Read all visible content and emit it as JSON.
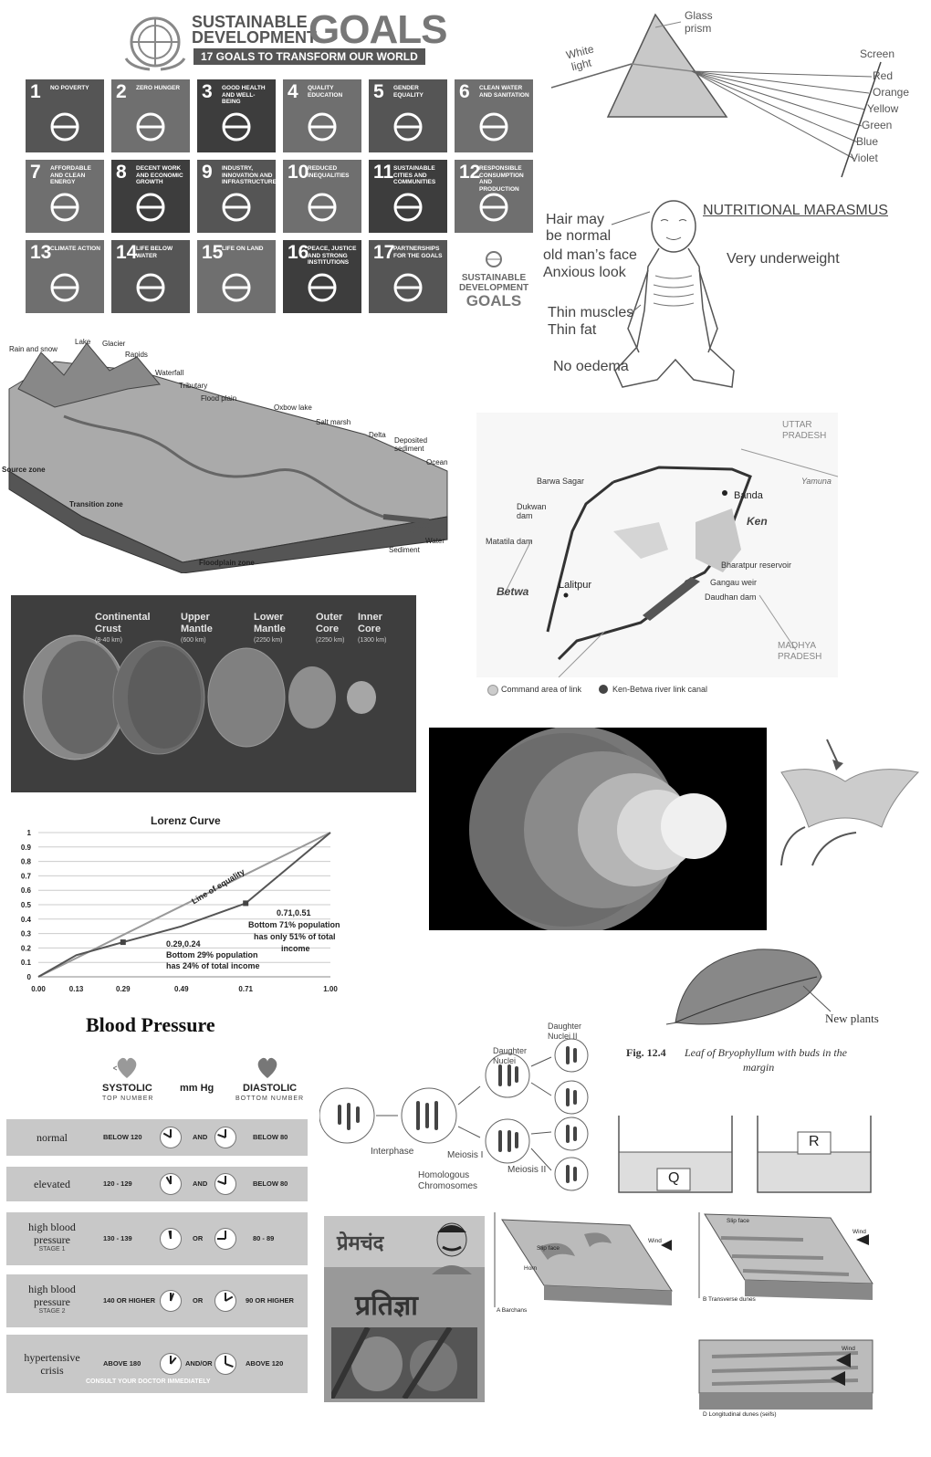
{
  "sdg": {
    "title_line1": "SUSTAINABLE",
    "title_line2": "DEVELOPMENT",
    "title_goals": "GOALS",
    "banner": "17 GOALS TO TRANSFORM OUR WORLD",
    "goals": [
      {
        "num": "1",
        "label": "NO POVERTY"
      },
      {
        "num": "2",
        "label": "ZERO HUNGER"
      },
      {
        "num": "3",
        "label": "GOOD HEALTH AND WELL-BEING"
      },
      {
        "num": "4",
        "label": "QUALITY EDUCATION"
      },
      {
        "num": "5",
        "label": "GENDER EQUALITY"
      },
      {
        "num": "6",
        "label": "CLEAN WATER AND SANITATION"
      },
      {
        "num": "7",
        "label": "AFFORDABLE AND CLEAN ENERGY"
      },
      {
        "num": "8",
        "label": "DECENT WORK AND ECONOMIC GROWTH"
      },
      {
        "num": "9",
        "label": "INDUSTRY, INNOVATION AND INFRASTRUCTURE"
      },
      {
        "num": "10",
        "label": "REDUCED INEQUALITIES"
      },
      {
        "num": "11",
        "label": "SUSTAINABLE CITIES AND COMMUNITIES"
      },
      {
        "num": "12",
        "label": "RESPONSIBLE CONSUMPTION AND PRODUCTION"
      },
      {
        "num": "13",
        "label": "CLIMATE ACTION"
      },
      {
        "num": "14",
        "label": "LIFE BELOW WATER"
      },
      {
        "num": "15",
        "label": "LIFE ON LAND"
      },
      {
        "num": "16",
        "label": "PEACE, JUSTICE AND STRONG INSTITUTIONS"
      },
      {
        "num": "17",
        "label": "PARTNERSHIPS FOR THE GOALS"
      }
    ],
    "logo_line1": "SUSTAINABLE",
    "logo_line2": "DEVELOPMENT",
    "logo_line3": "GOALS"
  },
  "prism": {
    "glass": "Glass",
    "prism": "prism",
    "white": "White",
    "light": "light",
    "screen": "Screen",
    "colors": [
      "Red",
      "Orange",
      "Yellow",
      "Green",
      "Blue",
      "Violet"
    ]
  },
  "marasmus": {
    "title": "NUTRITIONAL MARASMUS",
    "hair1": "Hair may",
    "hair2": "be normal",
    "face": "old man’s face",
    "anxious": "Anxious look",
    "underweight": "Very underweight",
    "muscles": "Thin muscles",
    "fat": "Thin fat",
    "oedema": "No oedema"
  },
  "river": {
    "labels": [
      "Rain and snow",
      "Lake",
      "Glacier",
      "Rapids",
      "Waterfall",
      "Tributary",
      "Flood plain",
      "Oxbow lake",
      "Salt marsh",
      "Delta",
      "Deposited sediment",
      "Ocean",
      "Source zone",
      "Transition zone",
      "Floodplain zone",
      "Sediment",
      "Water"
    ]
  },
  "kenbetwa": {
    "uttar": "UTTAR",
    "pradesh": "PRADESH",
    "madhya": "MADHYA",
    "pradesh2": "PRADESH",
    "yamuna": "Yamuna",
    "banda": "Banda",
    "ken": "Ken",
    "barwa": "Barwa Sagar",
    "dukwan1": "Dukwan",
    "dukwan2": "dam",
    "matatila": "Matatila dam",
    "betwa": "Betwa",
    "lalitpur": "Lalitpur",
    "bharatpur": "Bharatpur reservoir",
    "gangau": "Gangau weir",
    "daudhan": "Daudhan dam",
    "legend1": "Command area of link",
    "legend2": "Ken-Betwa river link canal"
  },
  "earth_layers": {
    "layers": [
      {
        "name1": "Continental",
        "name2": "Crust",
        "depth": "(8-40 km)"
      },
      {
        "name1": "Upper",
        "name2": "Mantle",
        "depth": "(600 km)"
      },
      {
        "name1": "Lower",
        "name2": "Mantle",
        "depth": "(2250 km)"
      },
      {
        "name1": "Outer",
        "name2": "Core",
        "depth": "(2250 km)"
      },
      {
        "name1": "Inner",
        "name2": "Core",
        "depth": "(1300 km)"
      }
    ]
  },
  "chart_data": {
    "type": "line",
    "title": "Lorenz Curve",
    "x_ticks": [
      "0.00",
      "0.13",
      "0.29",
      "0.49",
      "0.71",
      "1.00"
    ],
    "y_ticks": [
      "0",
      "0.1",
      "0.2",
      "0.3",
      "0.4",
      "0.5",
      "0.6",
      "0.7",
      "0.8",
      "0.9",
      "1"
    ],
    "ylim": [
      0,
      1
    ],
    "series": [
      {
        "name": "Line of equality",
        "points": [
          [
            0,
            0
          ],
          [
            0.13,
            0.13
          ],
          [
            0.29,
            0.29
          ],
          [
            0.49,
            0.49
          ],
          [
            0.71,
            0.71
          ],
          [
            1.0,
            1.0
          ]
        ]
      },
      {
        "points": [
          [
            0,
            0
          ],
          [
            0.13,
            0.15
          ],
          [
            0.29,
            0.24
          ],
          [
            0.49,
            0.35
          ],
          [
            0.71,
            0.51
          ],
          [
            1.0,
            1.0
          ]
        ]
      }
    ],
    "annotations": {
      "a1": "0.71,0.51",
      "a2": "Bottom 71% population",
      "a3": "has only 51% of total",
      "a4": "income",
      "b1": "0.29,0.24",
      "b2": "Bottom 29% population",
      "b3": "has 24% of total income"
    }
  },
  "bryophyllum": {
    "new_plants": "New plants",
    "caption_fig": "Fig. 12.4",
    "caption_text1": "Leaf of Bryophyllum with buds in the",
    "caption_text2": "margin"
  },
  "bp": {
    "title": "Blood Pressure",
    "systolic": "SYSTOLIC",
    "top_number": "TOP NUMBER",
    "mmhg": "mm Hg",
    "diastolic": "DIASTOLIC",
    "bottom_number": "BOTTOM NUMBER",
    "rows": [
      {
        "label1": "normal",
        "label2": "",
        "stage": "",
        "sys": "BELOW 120",
        "join": "AND",
        "dia": "BELOW 80"
      },
      {
        "label1": "elevated",
        "label2": "",
        "stage": "",
        "sys": "120 - 129",
        "join": "AND",
        "dia": "BELOW 80"
      },
      {
        "label1": "high blood",
        "label2": "pressure",
        "stage": "STAGE 1",
        "sys": "130 - 139",
        "join": "OR",
        "dia": "80 - 89"
      },
      {
        "label1": "high blood",
        "label2": "pressure",
        "stage": "STAGE 2",
        "sys": "140 OR HIGHER",
        "join": "OR",
        "dia": "90 OR HIGHER"
      },
      {
        "label1": "hypertensive",
        "label2": "crisis",
        "stage": "",
        "sys": "ABOVE 180",
        "join": "AND/OR",
        "dia": "ABOVE 120"
      }
    ],
    "consult": "CONSULT YOUR DOCTOR IMMEDIATELY"
  },
  "meiosis": {
    "daughter_nuclei": "Daughter",
    "nuclei": "Nuclei",
    "daughter2": "Daughter",
    "nuclei2": "Nuclei II",
    "interphase": "Interphase",
    "meiosis1": "Meiosis I",
    "meiosis2": "Meiosis II",
    "homologous": "Homologous",
    "chromosomes": "Chromosomes"
  },
  "beakers": {
    "q": "Q",
    "r": "R"
  },
  "book": {
    "author": "प्रेमचंद",
    "title": "प्रतिज्ञा"
  },
  "dunes": {
    "a": "A  Barchans",
    "b": "B  Transverse dunes",
    "d": "D  Longitudinal dunes (seifs)",
    "slip_face": "Slip face",
    "horn": "Horn",
    "wind": "Wind"
  }
}
